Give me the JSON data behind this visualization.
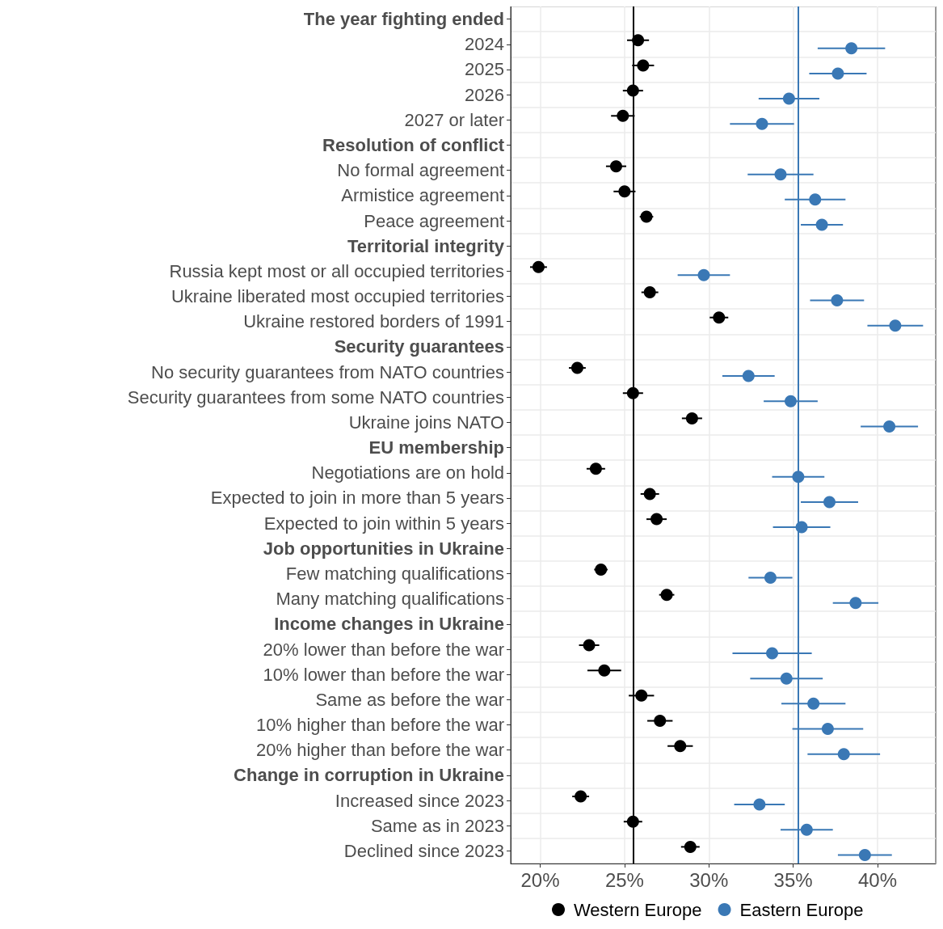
{
  "chart_data": {
    "type": "scatter",
    "orientation": "horizontal",
    "categories": [
      "The year fighting ended",
      "2024",
      "2025",
      "2026",
      "2027 or later",
      "Resolution of conflict",
      "No formal agreement",
      "Armistice agreement",
      "Peace agreement",
      "Territorial integrity",
      "Russia kept most or all occupied territories",
      "Ukraine liberated most occupied territories",
      "Ukraine restored borders of 1991",
      "Security guarantees",
      "No security guarantees from NATO countries",
      "Security guarantees from some NATO countries",
      "Ukraine joins NATO",
      "EU membership",
      "Negotiations are on hold",
      "Expected to join in more than 5 years",
      "Expected to join within 5 years",
      "Job opportunities in Ukraine",
      "Few matching qualifications",
      "Many matching qualifications",
      "Income changes in Ukraine",
      "20% lower than before the war",
      "10% lower than before the war",
      "Same as before the war",
      "10% higher than before the war",
      "20% higher than before the war",
      "Change in corruption in Ukraine",
      "Increased since 2023",
      "Same as in 2023",
      "Declined since 2023"
    ],
    "series": [
      {
        "name": "Western Europe",
        "color": "#000000",
        "values": [
          null,
          25.8,
          26.1,
          25.5,
          24.9,
          null,
          24.5,
          25.0,
          26.3,
          null,
          19.9,
          26.5,
          30.6,
          null,
          22.2,
          25.5,
          29.0,
          null,
          23.3,
          26.5,
          26.9,
          null,
          23.6,
          27.5,
          null,
          22.9,
          23.8,
          26.0,
          27.1,
          28.3,
          null,
          22.4,
          25.5,
          28.9
        ],
        "errors": [
          null,
          0.65,
          0.65,
          0.6,
          0.7,
          null,
          0.6,
          0.65,
          0.4,
          null,
          0.5,
          0.5,
          0.55,
          null,
          0.5,
          0.6,
          0.6,
          null,
          0.55,
          0.55,
          0.6,
          null,
          0.4,
          0.45,
          null,
          0.6,
          1.0,
          0.75,
          0.75,
          0.75,
          null,
          0.5,
          0.55,
          0.55
        ]
      },
      {
        "name": "Eastern Europe",
        "color": "#3a78b5",
        "values": [
          null,
          38.45,
          37.65,
          34.75,
          33.15,
          null,
          34.25,
          36.3,
          36.7,
          null,
          29.7,
          37.6,
          41.05,
          null,
          32.35,
          34.85,
          40.7,
          null,
          35.3,
          37.15,
          35.5,
          null,
          33.65,
          38.7,
          null,
          33.75,
          34.6,
          36.2,
          37.05,
          38.0,
          null,
          33.0,
          35.8,
          39.25
        ],
        "errors": [
          null,
          2.0,
          1.7,
          1.8,
          1.9,
          null,
          1.95,
          1.8,
          1.25,
          null,
          1.55,
          1.6,
          1.65,
          null,
          1.55,
          1.6,
          1.7,
          null,
          1.55,
          1.7,
          1.7,
          null,
          1.3,
          1.35,
          null,
          2.35,
          2.15,
          1.9,
          2.1,
          2.15,
          null,
          1.5,
          1.55,
          1.6
        ]
      }
    ],
    "xlim": [
      18.25,
      43.45
    ],
    "xticks": [
      {
        "value": 20,
        "label": "20%"
      },
      {
        "value": 25,
        "label": "25%"
      },
      {
        "value": 30,
        "label": "30%"
      },
      {
        "value": 35,
        "label": "35%"
      },
      {
        "value": 40,
        "label": "40%"
      }
    ],
    "ref_lines": [
      {
        "axis": "x",
        "value": 25.5,
        "color": "#000000"
      },
      {
        "axis": "x",
        "value": 35.3,
        "color": "#3a78b5"
      }
    ],
    "grid": true,
    "legend": "bottom",
    "marker": "circle"
  }
}
